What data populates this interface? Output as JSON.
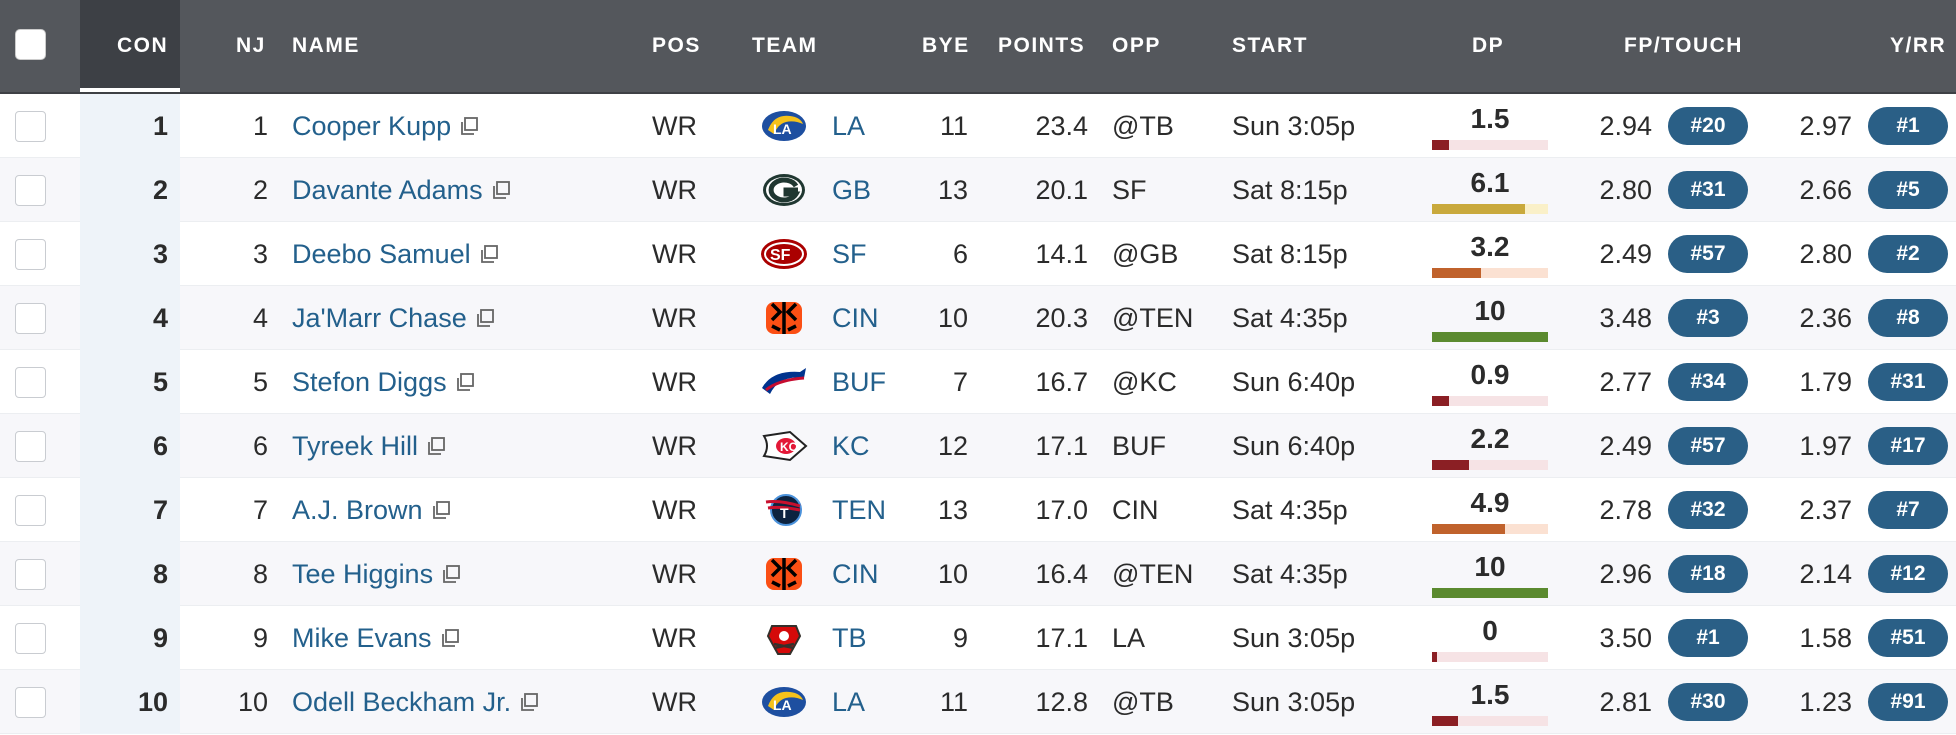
{
  "headers": {
    "con": "CON",
    "nj": "NJ",
    "name": "NAME",
    "pos": "POS",
    "team": "TEAM",
    "bye": "BYE",
    "points": "POINTS",
    "opp": "OPP",
    "start": "START",
    "dp": "DP",
    "fp_touch": "FP/TOUCH",
    "y_rr": "Y/RR"
  },
  "colors": {
    "header_bg": "#54575c",
    "link": "#23608c",
    "badge": "#2a5f86",
    "dp_red": "#8b1f24",
    "dp_red_track": "#f6e3e5",
    "dp_gold": "#c9a93c",
    "dp_gold_track": "#faf0c8",
    "dp_orange": "#c0622c",
    "dp_orange_track": "#fbe1d2",
    "dp_green": "#5b8a2f",
    "dp_green_track": "#dfecd0"
  },
  "rows": [
    {
      "con": "1",
      "nj": "1",
      "name": "Cooper Kupp",
      "pos": "WR",
      "team": "LA",
      "logo": "rams-logo",
      "bye": "11",
      "points": "23.4",
      "opp": "@TB",
      "start": "Sun 3:05p",
      "dp": "1.5",
      "dp_fill": 0.15,
      "dp_color": "red",
      "fp": "2.94",
      "fp_rank": "#20",
      "yrr": "2.97",
      "yrr_rank": "#1"
    },
    {
      "con": "2",
      "nj": "2",
      "name": "Davante Adams",
      "pos": "WR",
      "team": "GB",
      "logo": "packers-logo",
      "bye": "13",
      "points": "20.1",
      "opp": "SF",
      "start": "Sat 8:15p",
      "dp": "6.1",
      "dp_fill": 0.8,
      "dp_color": "gold",
      "fp": "2.80",
      "fp_rank": "#31",
      "yrr": "2.66",
      "yrr_rank": "#5"
    },
    {
      "con": "3",
      "nj": "3",
      "name": "Deebo Samuel",
      "pos": "WR",
      "team": "SF",
      "logo": "49ers-logo",
      "bye": "6",
      "points": "14.1",
      "opp": "@GB",
      "start": "Sat 8:15p",
      "dp": "3.2",
      "dp_fill": 0.42,
      "dp_color": "orange",
      "fp": "2.49",
      "fp_rank": "#57",
      "yrr": "2.80",
      "yrr_rank": "#2"
    },
    {
      "con": "4",
      "nj": "4",
      "name": "Ja'Marr Chase",
      "pos": "WR",
      "team": "CIN",
      "logo": "bengals-logo",
      "bye": "10",
      "points": "20.3",
      "opp": "@TEN",
      "start": "Sat 4:35p",
      "dp": "10",
      "dp_fill": 1.0,
      "dp_color": "green",
      "fp": "3.48",
      "fp_rank": "#3",
      "yrr": "2.36",
      "yrr_rank": "#8"
    },
    {
      "con": "5",
      "nj": "5",
      "name": "Stefon Diggs",
      "pos": "WR",
      "team": "BUF",
      "logo": "bills-logo",
      "bye": "7",
      "points": "16.7",
      "opp": "@KC",
      "start": "Sun 6:40p",
      "dp": "0.9",
      "dp_fill": 0.15,
      "dp_color": "red",
      "fp": "2.77",
      "fp_rank": "#34",
      "yrr": "1.79",
      "yrr_rank": "#31"
    },
    {
      "con": "6",
      "nj": "6",
      "name": "Tyreek Hill",
      "pos": "WR",
      "team": "KC",
      "logo": "chiefs-logo",
      "bye": "12",
      "points": "17.1",
      "opp": "BUF",
      "start": "Sun 6:40p",
      "dp": "2.2",
      "dp_fill": 0.32,
      "dp_color": "red",
      "fp": "2.49",
      "fp_rank": "#57",
      "yrr": "1.97",
      "yrr_rank": "#17"
    },
    {
      "con": "7",
      "nj": "7",
      "name": "A.J. Brown",
      "pos": "WR",
      "team": "TEN",
      "logo": "titans-logo",
      "bye": "13",
      "points": "17.0",
      "opp": "CIN",
      "start": "Sat 4:35p",
      "dp": "4.9",
      "dp_fill": 0.63,
      "dp_color": "orange",
      "fp": "2.78",
      "fp_rank": "#32",
      "yrr": "2.37",
      "yrr_rank": "#7"
    },
    {
      "con": "8",
      "nj": "8",
      "name": "Tee Higgins",
      "pos": "WR",
      "team": "CIN",
      "logo": "bengals-logo",
      "bye": "10",
      "points": "16.4",
      "opp": "@TEN",
      "start": "Sat 4:35p",
      "dp": "10",
      "dp_fill": 1.0,
      "dp_color": "green",
      "fp": "2.96",
      "fp_rank": "#18",
      "yrr": "2.14",
      "yrr_rank": "#12"
    },
    {
      "con": "9",
      "nj": "9",
      "name": "Mike Evans",
      "pos": "WR",
      "team": "TB",
      "logo": "buccaneers-logo",
      "bye": "9",
      "points": "17.1",
      "opp": "LA",
      "start": "Sun 3:05p",
      "dp": "0",
      "dp_fill": 0.04,
      "dp_color": "red",
      "fp": "3.50",
      "fp_rank": "#1",
      "yrr": "1.58",
      "yrr_rank": "#51"
    },
    {
      "con": "10",
      "nj": "10",
      "name": "Odell Beckham Jr.",
      "pos": "WR",
      "team": "LA",
      "logo": "rams-logo",
      "bye": "11",
      "points": "12.8",
      "opp": "@TB",
      "start": "Sun 3:05p",
      "dp": "1.5",
      "dp_fill": 0.22,
      "dp_color": "red",
      "fp": "2.81",
      "fp_rank": "#30",
      "yrr": "1.23",
      "yrr_rank": "#91"
    }
  ]
}
